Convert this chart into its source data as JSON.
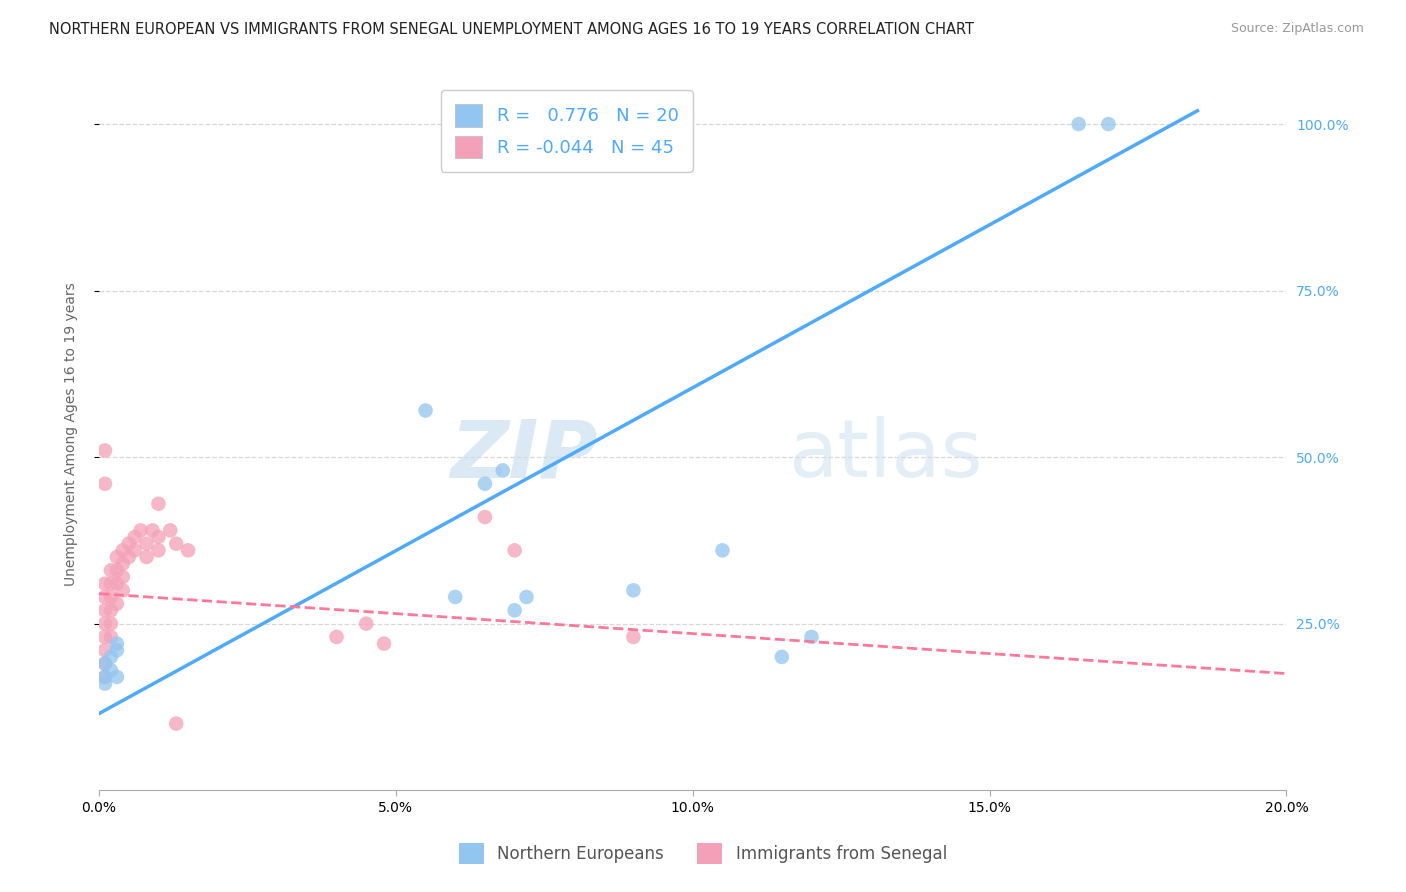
{
  "title": "NORTHERN EUROPEAN VS IMMIGRANTS FROM SENEGAL UNEMPLOYMENT AMONG AGES 16 TO 19 YEARS CORRELATION CHART",
  "source": "Source: ZipAtlas.com",
  "ylabel": "Unemployment Among Ages 16 to 19 years",
  "watermark_zip": "ZIP",
  "watermark_atlas": "atlas",
  "x_min": 0.0,
  "x_max": 0.2,
  "y_min": 0.0,
  "y_max": 1.07,
  "blue_R": 0.776,
  "blue_N": 20,
  "pink_R": -0.044,
  "pink_N": 45,
  "blue_color": "#92C5F0",
  "pink_color": "#F4A0B8",
  "blue_line_color": "#4DAAFF",
  "pink_line_color": "#FF7799",
  "legend_label_blue": "Northern Europeans",
  "legend_label_pink": "Immigrants from Senegal",
  "blue_scatter_x": [
    0.001,
    0.001,
    0.001,
    0.002,
    0.002,
    0.003,
    0.003,
    0.06,
    0.065,
    0.068,
    0.07,
    0.072,
    0.09,
    0.105,
    0.115,
    0.12,
    0.165,
    0.17,
    0.003,
    0.055
  ],
  "blue_scatter_y": [
    0.19,
    0.17,
    0.16,
    0.2,
    0.18,
    0.22,
    0.21,
    0.29,
    0.46,
    0.48,
    0.27,
    0.29,
    0.3,
    0.36,
    0.2,
    0.23,
    1.0,
    1.0,
    0.17,
    0.57
  ],
  "pink_scatter_x": [
    0.001,
    0.001,
    0.001,
    0.001,
    0.001,
    0.001,
    0.001,
    0.001,
    0.002,
    0.002,
    0.002,
    0.002,
    0.002,
    0.002,
    0.003,
    0.003,
    0.003,
    0.003,
    0.004,
    0.004,
    0.004,
    0.004,
    0.005,
    0.005,
    0.006,
    0.006,
    0.007,
    0.008,
    0.008,
    0.009,
    0.01,
    0.01,
    0.01,
    0.012,
    0.013,
    0.015,
    0.04,
    0.045,
    0.048,
    0.065,
    0.07,
    0.09,
    0.001,
    0.001,
    0.013
  ],
  "pink_scatter_y": [
    0.31,
    0.29,
    0.27,
    0.25,
    0.23,
    0.21,
    0.19,
    0.17,
    0.33,
    0.31,
    0.29,
    0.27,
    0.25,
    0.23,
    0.35,
    0.33,
    0.31,
    0.28,
    0.36,
    0.34,
    0.32,
    0.3,
    0.37,
    0.35,
    0.38,
    0.36,
    0.39,
    0.37,
    0.35,
    0.39,
    0.43,
    0.38,
    0.36,
    0.39,
    0.37,
    0.36,
    0.23,
    0.25,
    0.22,
    0.41,
    0.36,
    0.23,
    0.51,
    0.46,
    0.1
  ],
  "blue_line_x0": 0.0,
  "blue_line_y0": 0.115,
  "blue_line_x1": 0.185,
  "blue_line_y1": 1.02,
  "pink_line_x0": 0.0,
  "pink_line_y0": 0.295,
  "pink_line_x1": 0.2,
  "pink_line_y1": 0.175,
  "grid_color": "#D8D8D8",
  "grid_style": "--",
  "background_color": "#FFFFFF",
  "title_fontsize": 10.5,
  "axis_label_fontsize": 10,
  "tick_fontsize": 10,
  "right_tick_color": "#4DAAFF",
  "scatter_size": 110,
  "scatter_alpha": 0.75
}
